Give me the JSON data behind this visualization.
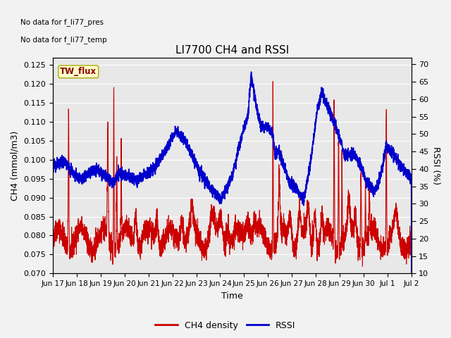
{
  "title": "LI7700 CH4 and RSSI",
  "xlabel": "Time",
  "ylabel_left": "CH4 (mmol/m3)",
  "ylabel_right": "RSSI (%)",
  "text_annotations": [
    "No data for f_li77_pres",
    "No data for f_li77_temp"
  ],
  "legend_box_label": "TW_flux",
  "legend_entries": [
    "CH4 density",
    "RSSI"
  ],
  "ch4_color": "#cc0000",
  "rssi_color": "#0000cc",
  "ylim_left": [
    0.07,
    0.127
  ],
  "ylim_right": [
    10,
    72
  ],
  "yticks_left": [
    0.07,
    0.075,
    0.08,
    0.085,
    0.09,
    0.095,
    0.1,
    0.105,
    0.11,
    0.115,
    0.12,
    0.125
  ],
  "yticks_right": [
    10,
    15,
    20,
    25,
    30,
    35,
    40,
    45,
    50,
    55,
    60,
    65,
    70
  ],
  "background_color": "#e8e8e8",
  "grid_color": "#ffffff",
  "xtick_labels": [
    "Jun 17",
    "Jun 18",
    "Jun 19",
    "Jun 20",
    "Jun 21",
    "Jun 22",
    "Jun 23",
    "Jun 24",
    "Jun 25",
    "Jun 26",
    "Jun 27",
    "Jun 28",
    "Jun 29",
    "Jun 30",
    "Jul 1",
    "Jul 2"
  ],
  "linewidth_ch4": 0.8,
  "linewidth_rssi": 1.2,
  "figsize": [
    6.4,
    4.8
  ],
  "dpi": 100
}
